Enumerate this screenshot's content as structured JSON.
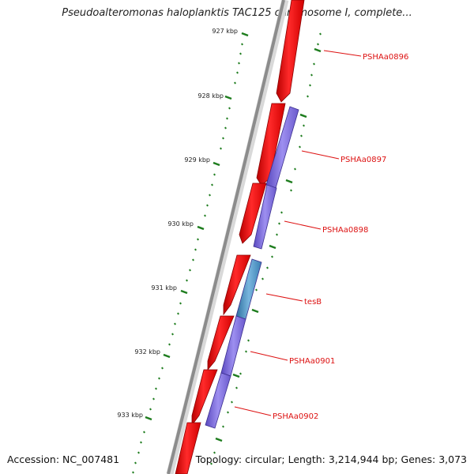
{
  "title": "Pseudoalteromonas haloplanktis TAC125 chromosome I, complete...",
  "footer": {
    "accession": "Accession: NC_007481",
    "topology": "Topology: circular; Length: 3,214,944 bp; Genes: 3,073"
  },
  "ruler": {
    "ticks": [
      {
        "label": "927 kbp"
      },
      {
        "label": "928 kbp"
      },
      {
        "label": "929 kbp"
      },
      {
        "label": "930 kbp"
      },
      {
        "label": "931 kbp"
      },
      {
        "label": "932 kbp"
      },
      {
        "label": "933 kbp"
      }
    ]
  },
  "gene_labels": [
    {
      "name": "PSHAa0896"
    },
    {
      "name": "PSHAa0897"
    },
    {
      "name": "PSHAa0898"
    },
    {
      "name": "tesB"
    },
    {
      "name": "PSHAa0901"
    },
    {
      "name": "PSHAa0902"
    }
  ],
  "colors": {
    "backbone": "#8c8c8c",
    "forward_feature": "#ee1111",
    "cds_feature": "#7a68d8",
    "cds_highlight": "#4a86b8",
    "tick": "#1e7d1e",
    "label": "#dd1111"
  }
}
